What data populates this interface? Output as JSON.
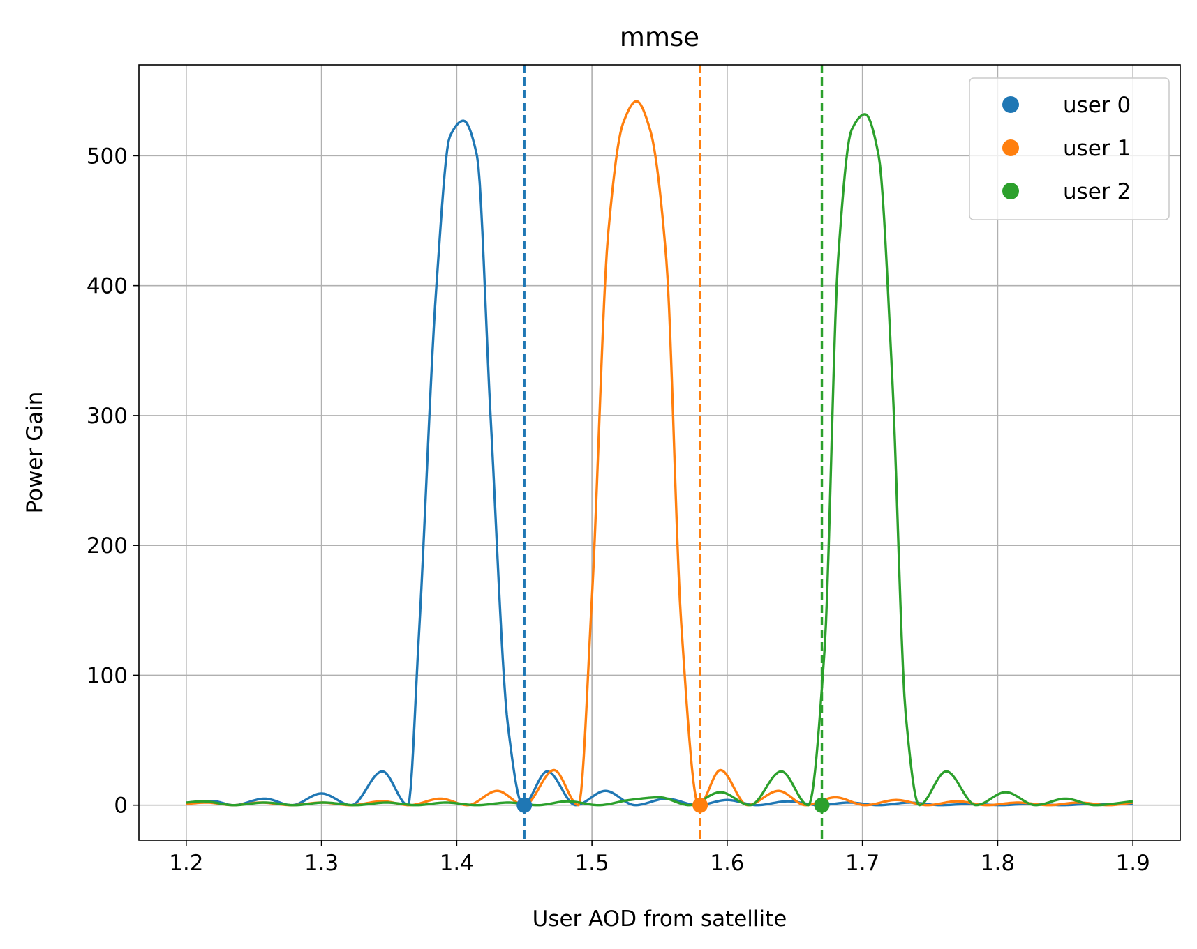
{
  "chart_data": {
    "type": "line",
    "title": "mmse",
    "xlabel": "User AOD from satellite",
    "ylabel": "Power Gain",
    "xlim": [
      1.165,
      1.935
    ],
    "ylim": [
      -27,
      570
    ],
    "xticks": [
      1.2,
      1.3,
      1.4,
      1.5,
      1.6,
      1.7,
      1.8,
      1.9
    ],
    "xtick_labels": [
      "1.2",
      "1.3",
      "1.4",
      "1.5",
      "1.6",
      "1.7",
      "1.8",
      "1.9"
    ],
    "yticks": [
      0,
      100,
      200,
      300,
      400,
      500
    ],
    "ytick_labels": [
      "0",
      "100",
      "200",
      "300",
      "400",
      "500"
    ],
    "grid": true,
    "legend_position": "top-right",
    "series": [
      {
        "name": "user 0",
        "color": "#1f77b4",
        "peak_x": 1.405,
        "peak_value": 527,
        "user_aod": 1.45,
        "user_gain": 0,
        "x": [
          1.2,
          1.22,
          1.235,
          1.258,
          1.278,
          1.3,
          1.322,
          1.345,
          1.364,
          1.372,
          1.385,
          1.395,
          1.405,
          1.415,
          1.425,
          1.438,
          1.449,
          1.467,
          1.488,
          1.51,
          1.532,
          1.555,
          1.578,
          1.6,
          1.622,
          1.645,
          1.668,
          1.69,
          1.712,
          1.735,
          1.758,
          1.78,
          1.802,
          1.825,
          1.848,
          1.87,
          1.9
        ],
        "values": [
          1,
          3,
          0,
          5,
          0,
          9,
          0,
          26,
          0,
          130,
          400,
          515,
          527,
          500,
          300,
          60,
          0,
          26,
          0,
          11,
          0,
          5,
          0,
          4,
          0,
          3,
          0,
          2,
          0,
          2,
          0,
          1,
          0,
          1,
          0,
          1,
          1
        ]
      },
      {
        "name": "user 1",
        "color": "#ff7f0e",
        "peak_x": 1.533,
        "peak_value": 542,
        "user_aod": 1.58,
        "user_gain": 0,
        "x": [
          1.2,
          1.215,
          1.235,
          1.255,
          1.278,
          1.3,
          1.322,
          1.345,
          1.365,
          1.388,
          1.408,
          1.43,
          1.45,
          1.472,
          1.49,
          1.5,
          1.512,
          1.523,
          1.533,
          1.543,
          1.555,
          1.566,
          1.579,
          1.595,
          1.615,
          1.638,
          1.658,
          1.68,
          1.702,
          1.725,
          1.748,
          1.77,
          1.792,
          1.815,
          1.838,
          1.86,
          1.882,
          1.9
        ],
        "values": [
          1,
          2,
          0,
          2,
          0,
          2,
          0,
          3,
          0,
          5,
          0,
          11,
          0,
          27,
          0,
          160,
          440,
          525,
          542,
          520,
          420,
          140,
          0,
          27,
          0,
          11,
          0,
          6,
          0,
          4,
          0,
          3,
          0,
          2,
          0,
          2,
          0,
          2
        ]
      },
      {
        "name": "user 2",
        "color": "#2ca02c",
        "peak_x": 1.702,
        "peak_value": 532,
        "user_aod": 1.67,
        "user_gain": 0,
        "x": [
          1.2,
          1.212,
          1.235,
          1.258,
          1.28,
          1.302,
          1.325,
          1.348,
          1.37,
          1.392,
          1.415,
          1.438,
          1.46,
          1.482,
          1.505,
          1.528,
          1.55,
          1.572,
          1.595,
          1.617,
          1.64,
          1.66,
          1.672,
          1.682,
          1.692,
          1.702,
          1.712,
          1.722,
          1.732,
          1.742,
          1.762,
          1.784,
          1.806,
          1.828,
          1.85,
          1.872,
          1.9
        ],
        "values": [
          2,
          3,
          0,
          2,
          0,
          2,
          0,
          2,
          0,
          2,
          0,
          2,
          0,
          3,
          0,
          4,
          6,
          0,
          10,
          0,
          26,
          0,
          120,
          420,
          520,
          532,
          500,
          330,
          70,
          0,
          26,
          0,
          10,
          0,
          5,
          0,
          3
        ]
      }
    ]
  }
}
